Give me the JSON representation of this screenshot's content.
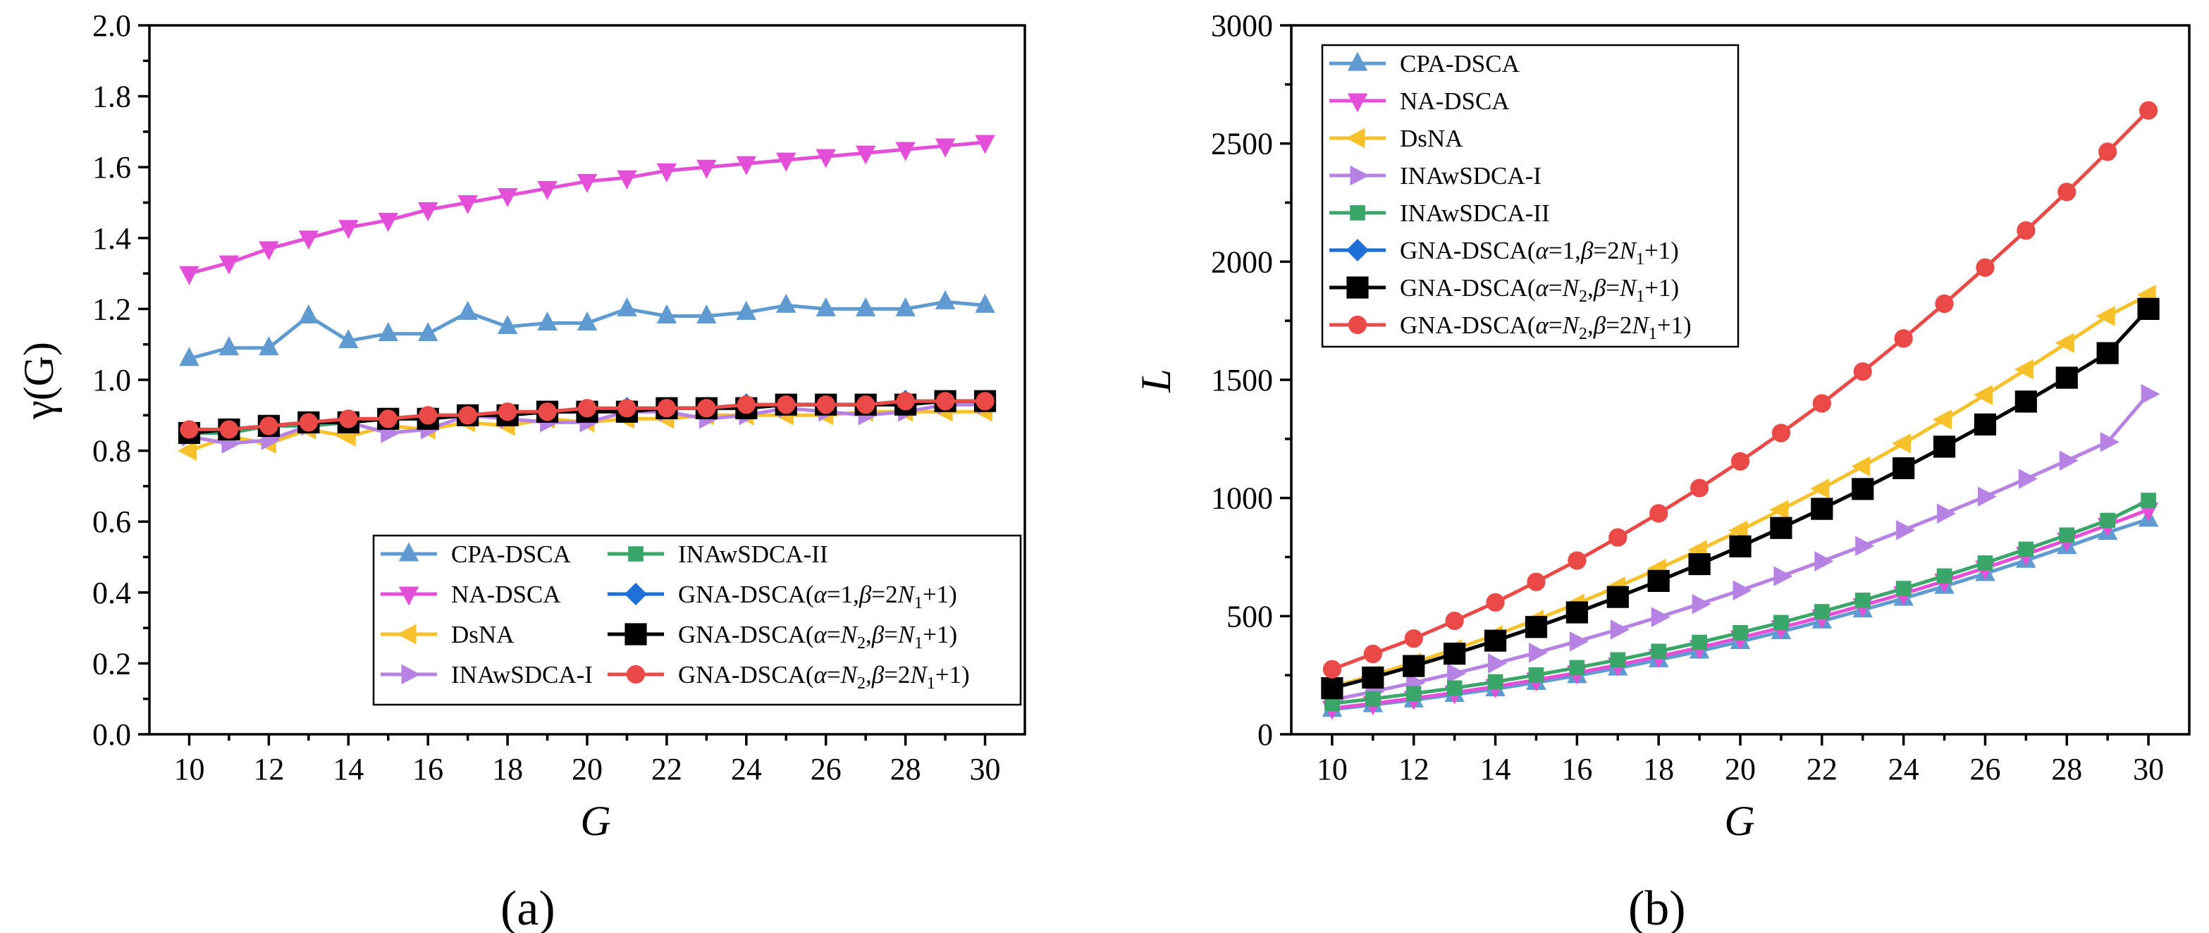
{
  "chart_data": [
    {
      "type": "line",
      "panel_label": "(a)",
      "xlabel": "G",
      "ylabel": "γ(G)",
      "xlim": [
        9,
        31
      ],
      "ylim": [
        0,
        2.0
      ],
      "xticks": [
        10,
        12,
        14,
        16,
        18,
        20,
        22,
        24,
        26,
        28,
        30
      ],
      "yticks": [
        0.0,
        0.2,
        0.4,
        0.6,
        0.8,
        1.0,
        1.2,
        1.4,
        1.6,
        1.8,
        2.0
      ],
      "ytick_labels": [
        "0.0",
        "0.2",
        "0.4",
        "0.6",
        "0.8",
        "1.0",
        "1.2",
        "1.4",
        "1.6",
        "1.8",
        "2.0"
      ],
      "legend_position": "bottom-right",
      "x": [
        10,
        11,
        12,
        13,
        14,
        15,
        16,
        17,
        18,
        19,
        20,
        21,
        22,
        23,
        24,
        25,
        26,
        27,
        28,
        29,
        30
      ],
      "series": [
        {
          "name": "CPA-DSCA",
          "color": "#5f9bd0",
          "marker": "triangle-up",
          "values": [
            1.06,
            1.09,
            1.09,
            1.18,
            1.11,
            1.13,
            1.13,
            1.19,
            1.15,
            1.16,
            1.16,
            1.2,
            1.18,
            1.18,
            1.19,
            1.21,
            1.2,
            1.2,
            1.2,
            1.22,
            1.21
          ]
        },
        {
          "name": "NA-DSCA",
          "color": "#e44fd8",
          "marker": "triangle-down",
          "values": [
            1.3,
            1.33,
            1.37,
            1.4,
            1.43,
            1.45,
            1.48,
            1.5,
            1.52,
            1.54,
            1.56,
            1.57,
            1.59,
            1.6,
            1.61,
            1.62,
            1.63,
            1.64,
            1.65,
            1.66,
            1.67
          ]
        },
        {
          "name": "DsNA",
          "color": "#f6c12b",
          "marker": "triangle-left",
          "values": [
            0.8,
            0.84,
            0.82,
            0.86,
            0.84,
            0.87,
            0.86,
            0.88,
            0.87,
            0.89,
            0.88,
            0.89,
            0.89,
            0.9,
            0.9,
            0.9,
            0.9,
            0.91,
            0.91,
            0.91,
            0.91
          ]
        },
        {
          "name": "INAwSDCA-I",
          "color": "#b682e4",
          "marker": "triangle-right",
          "values": [
            0.84,
            0.82,
            0.83,
            0.87,
            0.88,
            0.85,
            0.86,
            0.9,
            0.89,
            0.88,
            0.88,
            0.91,
            0.91,
            0.89,
            0.9,
            0.92,
            0.91,
            0.9,
            0.91,
            0.93,
            0.93
          ]
        },
        {
          "name": "INAwSDCA-II",
          "color": "#3aa66a",
          "marker": "square",
          "values": [
            0.85,
            0.85,
            0.87,
            0.87,
            0.88,
            0.89,
            0.9,
            0.9,
            0.9,
            0.91,
            0.91,
            0.92,
            0.92,
            0.92,
            0.92,
            0.93,
            0.93,
            0.93,
            0.93,
            0.94,
            0.94
          ]
        },
        {
          "name": "GNA-DSCA(α=1,β=2N1+1)",
          "color": "#1e6fd6",
          "marker": "diamond",
          "values": [
            0.85,
            0.86,
            0.87,
            0.88,
            0.88,
            0.89,
            0.89,
            0.9,
            0.9,
            0.91,
            0.91,
            0.92,
            0.92,
            0.92,
            0.93,
            0.93,
            0.93,
            0.93,
            0.94,
            0.94,
            0.94
          ]
        },
        {
          "name": "GNA-DSCA(α=N2,β=N1+1)",
          "color": "#000000",
          "marker": "star",
          "values": [
            0.85,
            0.86,
            0.87,
            0.88,
            0.88,
            0.89,
            0.89,
            0.9,
            0.9,
            0.91,
            0.91,
            0.91,
            0.92,
            0.92,
            0.92,
            0.93,
            0.93,
            0.93,
            0.93,
            0.94,
            0.94
          ]
        },
        {
          "name": "GNA-DSCA(α=N2,β=2N1+1)",
          "color": "#ea4a47",
          "marker": "circle",
          "values": [
            0.86,
            0.86,
            0.87,
            0.88,
            0.89,
            0.89,
            0.9,
            0.9,
            0.91,
            0.91,
            0.92,
            0.92,
            0.92,
            0.92,
            0.93,
            0.93,
            0.93,
            0.93,
            0.94,
            0.94,
            0.94
          ]
        }
      ]
    },
    {
      "type": "line",
      "panel_label": "(b)",
      "xlabel": "G",
      "ylabel": "L",
      "xlim": [
        9,
        31
      ],
      "ylim": [
        0,
        3000
      ],
      "xticks": [
        10,
        12,
        14,
        16,
        18,
        20,
        22,
        24,
        26,
        28,
        30
      ],
      "yticks": [
        0,
        500,
        1000,
        1500,
        2000,
        2500,
        3000
      ],
      "ytick_labels": [
        "0",
        "500",
        "1000",
        "1500",
        "2000",
        "2500",
        "3000"
      ],
      "legend_position": "top-left",
      "x": [
        10,
        11,
        12,
        13,
        14,
        15,
        16,
        17,
        18,
        19,
        20,
        21,
        22,
        23,
        24,
        25,
        26,
        27,
        28,
        29,
        30
      ],
      "series": [
        {
          "name": "CPA-DSCA",
          "color": "#5f9bd0",
          "marker": "triangle-up",
          "values": [
            105,
            125,
            145,
            168,
            192,
            219,
            248,
            280,
            315,
            352,
            392,
            434,
            479,
            526,
            575,
            626,
            680,
            736,
            794,
            854,
            910
          ]
        },
        {
          "name": "NA-DSCA",
          "color": "#e44fd8",
          "marker": "triangle-down",
          "values": [
            110,
            130,
            152,
            176,
            202,
            230,
            260,
            293,
            329,
            367,
            408,
            451,
            497,
            545,
            595,
            648,
            704,
            762,
            822,
            885,
            950
          ]
        },
        {
          "name": "DsNA",
          "color": "#f6c12b",
          "marker": "triangle-left",
          "values": [
            200,
            250,
            303,
            360,
            420,
            485,
            553,
            625,
            701,
            780,
            863,
            950,
            1040,
            1134,
            1231,
            1332,
            1436,
            1544,
            1656,
            1770,
            1860
          ]
        },
        {
          "name": "INAwSDCA-I",
          "color": "#b682e4",
          "marker": "triangle-right",
          "values": [
            145,
            180,
            218,
            258,
            300,
            345,
            393,
            443,
            496,
            551,
            609,
            669,
            732,
            797,
            864,
            934,
            1006,
            1081,
            1158,
            1237,
            1440
          ]
        },
        {
          "name": "INAwSDCA-II",
          "color": "#3aa66a",
          "marker": "square",
          "values": [
            130,
            150,
            172,
            196,
            222,
            251,
            282,
            315,
            351,
            389,
            430,
            473,
            519,
            567,
            617,
            670,
            725,
            783,
            843,
            905,
            990
          ]
        },
        {
          "name": "GNA-DSCA(α=1,β=2N1+1)",
          "color": "#1e6fd6",
          "marker": "diamond",
          "values": [
            195,
            240,
            289,
            341,
            396,
            454,
            516,
            581,
            649,
            720,
            795,
            873,
            954,
            1038,
            1126,
            1217,
            1311,
            1408,
            1509,
            1613,
            1800
          ]
        },
        {
          "name": "GNA-DSCA(α=N2,β=N1+1)",
          "color": "#000000",
          "marker": "star",
          "values": [
            195,
            240,
            289,
            341,
            396,
            454,
            516,
            581,
            649,
            720,
            795,
            873,
            954,
            1038,
            1126,
            1217,
            1311,
            1408,
            1509,
            1613,
            1800
          ]
        },
        {
          "name": "GNA-DSCA(α=N2,β=2N1+1)",
          "color": "#ea4a47",
          "marker": "circle",
          "values": [
            275,
            340,
            405,
            480,
            558,
            645,
            735,
            833,
            935,
            1042,
            1155,
            1275,
            1400,
            1535,
            1675,
            1822,
            1975,
            2132,
            2295,
            2465,
            2640
          ]
        }
      ]
    }
  ]
}
